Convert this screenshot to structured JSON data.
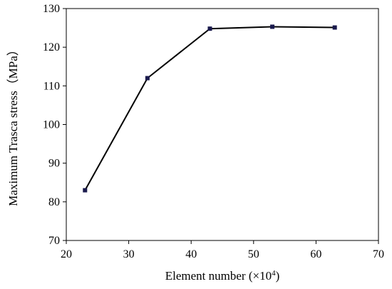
{
  "chart_data": {
    "type": "line",
    "title": "",
    "xlabel": "Element number (×10",
    "xlabel_sup": "4",
    "xlabel_close": ")",
    "ylabel": "Maximum Trasca stress（MPa）",
    "xlim": [
      20,
      70
    ],
    "ylim": [
      70,
      130
    ],
    "xticks": [
      20,
      30,
      40,
      50,
      60,
      70
    ],
    "yticks": [
      70,
      80,
      90,
      100,
      110,
      120,
      130
    ],
    "grid": false,
    "legend": "none",
    "series": [
      {
        "x": [
          23,
          33,
          43,
          53,
          63
        ],
        "y": [
          83,
          112,
          124.8,
          125.3,
          125.1
        ],
        "color": "#000000",
        "marker": "square",
        "marker_color": "#1a1a4d"
      }
    ]
  }
}
